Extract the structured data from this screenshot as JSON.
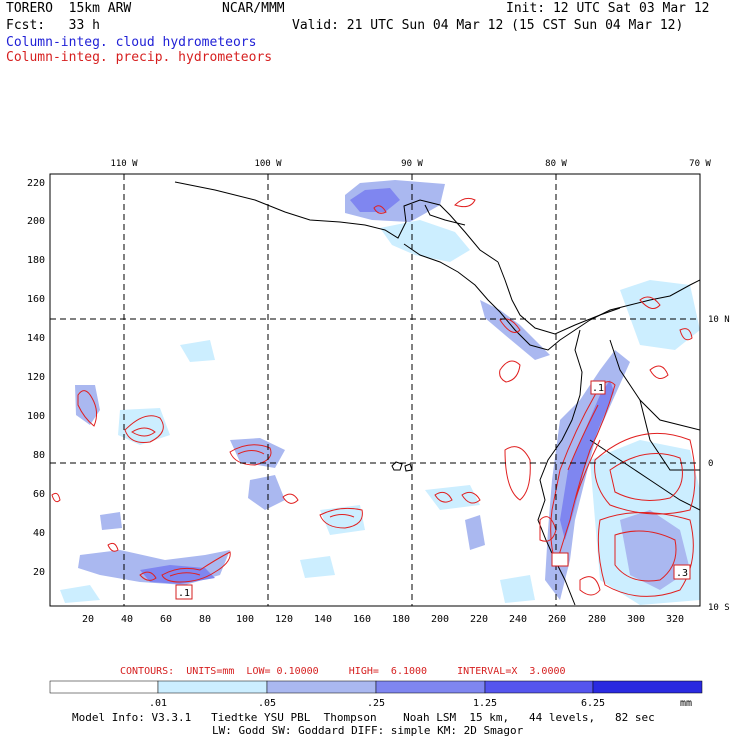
{
  "header": {
    "model": "TORERO  15km ARW",
    "org": "NCAR/MMM",
    "init": "Init: 12 UTC Sat 03 Mar 12",
    "fcst": "Fcst:   33 h",
    "valid": "Valid: 21 UTC Sun 04 Mar 12 (15 CST Sun 04 Mar 12)"
  },
  "fields": {
    "cloud": "Column-integ. cloud hydrometeors",
    "precip": "Column-integ. precip. hydrometeors"
  },
  "map": {
    "lon_labels": [
      "110 W",
      "100 W",
      "90 W",
      "80 W",
      "70 W"
    ],
    "lat_labels": [
      "10 N",
      "0",
      "10 S"
    ],
    "y_ticks": [
      "220",
      "200",
      "180",
      "160",
      "140",
      "120",
      "100",
      "80",
      "60",
      "40",
      "20"
    ],
    "x_ticks": [
      "20",
      "40",
      "60",
      "80",
      "100",
      "120",
      "140",
      "160",
      "180",
      "200",
      "220",
      "240",
      "260",
      "280",
      "300",
      "320"
    ],
    "box_labels": [
      ".1",
      ".1",
      ".3"
    ]
  },
  "contours": {
    "label": "CONTOURS:  UNITS=mm  LOW= 0.10000     HIGH=  6.1000     INTERVAL=X  3.0000"
  },
  "colorbar": {
    "ticks": [
      ".01",
      ".05",
      ".25",
      "1.25",
      "6.25"
    ],
    "unit": "mm",
    "colors": [
      "#ffffff",
      "#cceeff",
      "#aab8f0",
      "#7f86f0",
      "#5555ee",
      "#2a2ae0"
    ]
  },
  "footer": {
    "line1": "Model Info: V3.3.1   Tiedtke YSU PBL  Thompson    Noah LSM  15 km,   44 levels,   82 sec",
    "line2": "LW: Godd SW: Goddard DIFF: simple KM: 2D Smagor"
  }
}
